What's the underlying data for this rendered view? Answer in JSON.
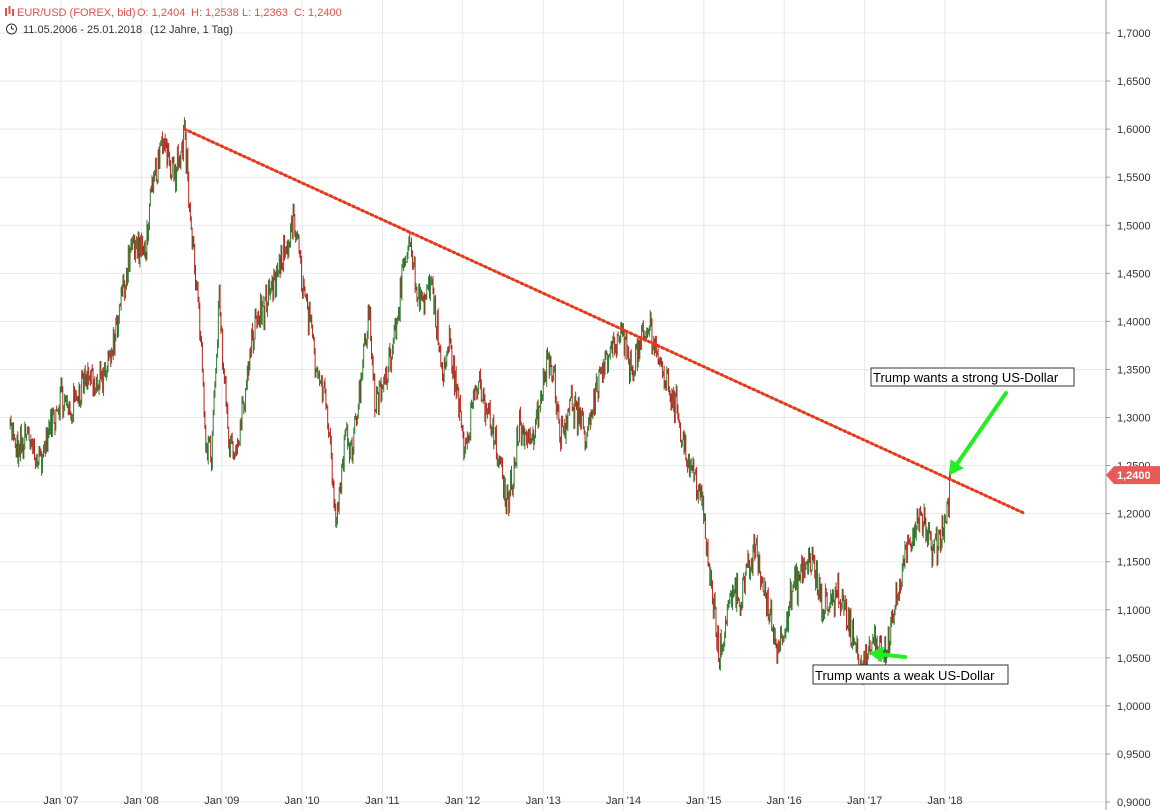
{
  "header": {
    "symbol_label": "EUR/USD (FOREX, bid)",
    "ohlc": {
      "open_label": "O: 1,2404",
      "high_label": "H: 1,2538",
      "low_label": "L: 1,2363",
      "close_label": "C: 1,2400"
    },
    "date_range": "11.05.2006 - 25.01.2018",
    "period": "(12 Jahre, 1 Tag)",
    "colors": {
      "symbol": "#d9534f",
      "text": "#333333"
    }
  },
  "chart_data": {
    "type": "line",
    "title": "",
    "subtitle": "",
    "x": {
      "type": "date",
      "range": [
        "2006-05-11",
        "2018-01-25"
      ],
      "tick_labels": [
        "Jan '07",
        "Jan '08",
        "Jan '09",
        "Jan '10",
        "Jan '11",
        "Jan '12",
        "Jan '13",
        "Jan '14",
        "Jan '15",
        "Jan '16",
        "Jan '17",
        "Jan '18"
      ],
      "tick_dates": [
        "2007-01-01",
        "2008-01-01",
        "2009-01-01",
        "2010-01-01",
        "2011-01-01",
        "2012-01-01",
        "2013-01-01",
        "2014-01-01",
        "2015-01-01",
        "2016-01-01",
        "2017-01-01",
        "2018-01-01"
      ]
    },
    "y": {
      "position": "right",
      "range": [
        0.9,
        1.72
      ],
      "ticks": [
        0.9,
        0.95,
        1.0,
        1.05,
        1.1,
        1.15,
        1.2,
        1.25,
        1.3,
        1.35,
        1.4,
        1.45,
        1.5,
        1.55,
        1.6,
        1.65,
        1.7
      ],
      "tick_labels": [
        "0,9000",
        "0,9500",
        "1,0000",
        "1,0500",
        "1,1000",
        "1,1500",
        "1,2000",
        "1,2500",
        "1,3000",
        "1,3500",
        "1,4000",
        "1,4500",
        "1,5000",
        "1,5500",
        "1,6000",
        "1,6500",
        "1,7000"
      ]
    },
    "grid": true,
    "series": [
      {
        "kind": "price",
        "color": "#2f7d32",
        "points": [
          [
            "2006-05-11",
            1.29
          ],
          [
            "2006-06-15",
            1.265
          ],
          [
            "2006-08-01",
            1.28
          ],
          [
            "2006-10-01",
            1.255
          ],
          [
            "2006-11-15",
            1.29
          ],
          [
            "2007-01-01",
            1.32
          ],
          [
            "2007-02-15",
            1.305
          ],
          [
            "2007-04-01",
            1.335
          ],
          [
            "2007-05-15",
            1.345
          ],
          [
            "2007-06-15",
            1.33
          ],
          [
            "2007-08-15",
            1.36
          ],
          [
            "2007-09-15",
            1.4
          ],
          [
            "2007-11-15",
            1.48
          ],
          [
            "2008-01-15",
            1.47
          ],
          [
            "2008-03-01",
            1.55
          ],
          [
            "2008-04-15",
            1.59
          ],
          [
            "2008-06-01",
            1.555
          ],
          [
            "2008-07-15",
            1.6
          ],
          [
            "2008-08-15",
            1.495
          ],
          [
            "2008-09-15",
            1.42
          ],
          [
            "2008-10-20",
            1.28
          ],
          [
            "2008-11-15",
            1.26
          ],
          [
            "2008-12-20",
            1.42
          ],
          [
            "2009-02-01",
            1.28
          ],
          [
            "2009-03-05",
            1.26
          ],
          [
            "2009-04-15",
            1.32
          ],
          [
            "2009-06-01",
            1.4
          ],
          [
            "2009-08-01",
            1.42
          ],
          [
            "2009-10-01",
            1.46
          ],
          [
            "2009-11-25",
            1.505
          ],
          [
            "2010-01-10",
            1.43
          ],
          [
            "2010-03-01",
            1.36
          ],
          [
            "2010-04-15",
            1.33
          ],
          [
            "2010-06-07",
            1.195
          ],
          [
            "2010-07-15",
            1.28
          ],
          [
            "2010-08-20",
            1.275
          ],
          [
            "2010-11-01",
            1.41
          ],
          [
            "2010-12-01",
            1.31
          ],
          [
            "2011-01-15",
            1.34
          ],
          [
            "2011-05-01",
            1.48
          ],
          [
            "2011-06-15",
            1.42
          ],
          [
            "2011-08-15",
            1.44
          ],
          [
            "2011-10-01",
            1.34
          ],
          [
            "2011-11-01",
            1.38
          ],
          [
            "2012-01-10",
            1.27
          ],
          [
            "2012-03-01",
            1.335
          ],
          [
            "2012-05-01",
            1.3
          ],
          [
            "2012-07-24",
            1.21
          ],
          [
            "2012-09-15",
            1.29
          ],
          [
            "2012-11-15",
            1.275
          ],
          [
            "2013-02-01",
            1.37
          ],
          [
            "2013-03-25",
            1.28
          ],
          [
            "2013-05-01",
            1.32
          ],
          [
            "2013-07-10",
            1.28
          ],
          [
            "2013-09-15",
            1.345
          ],
          [
            "2013-12-27",
            1.385
          ],
          [
            "2014-02-01",
            1.35
          ],
          [
            "2014-05-06",
            1.395
          ],
          [
            "2014-06-15",
            1.355
          ],
          [
            "2014-09-01",
            1.31
          ],
          [
            "2014-10-15",
            1.26
          ],
          [
            "2014-12-15",
            1.225
          ],
          [
            "2015-01-20",
            1.15
          ],
          [
            "2015-03-13",
            1.05
          ],
          [
            "2015-05-15",
            1.13
          ],
          [
            "2015-06-15",
            1.11
          ],
          [
            "2015-08-24",
            1.165
          ],
          [
            "2015-10-01",
            1.12
          ],
          [
            "2015-12-03",
            1.058
          ],
          [
            "2016-02-10",
            1.12
          ],
          [
            "2016-05-03",
            1.155
          ],
          [
            "2016-06-24",
            1.1
          ],
          [
            "2016-09-01",
            1.12
          ],
          [
            "2016-11-15",
            1.07
          ],
          [
            "2016-12-20",
            1.038
          ],
          [
            "2017-02-15",
            1.065
          ],
          [
            "2017-04-10",
            1.06
          ],
          [
            "2017-05-15",
            1.1
          ],
          [
            "2017-07-15",
            1.16
          ],
          [
            "2017-09-08",
            1.205
          ],
          [
            "2017-11-07",
            1.158
          ],
          [
            "2017-12-15",
            1.18
          ],
          [
            "2018-01-10",
            1.2
          ],
          [
            "2018-01-25",
            1.24
          ]
        ]
      }
    ],
    "trendline": {
      "style": "dotted",
      "color": "#e53a1a",
      "from": [
        "2008-07-15",
        1.6
      ],
      "to": [
        "2018-12-31",
        1.2
      ]
    },
    "price_marker": {
      "value": 1.24,
      "label": "1,2400",
      "color": "#e85a5a"
    },
    "annotations": [
      {
        "text": "Trump wants a strong US-Dollar",
        "arrow_color": "#22ee22",
        "arrow_points_to": [
          "2018-01-20",
          1.24
        ]
      },
      {
        "text": "Trump wants a weak US-Dollar",
        "arrow_color": "#22ee22",
        "arrow_points_to": [
          "2017-01-20",
          1.055
        ]
      }
    ],
    "colors": {
      "up": "#2f7d32",
      "down": "#b3241d",
      "grid": "#e8e8e8",
      "axis": "#9a9a9a",
      "axis_text": "#333333"
    }
  }
}
